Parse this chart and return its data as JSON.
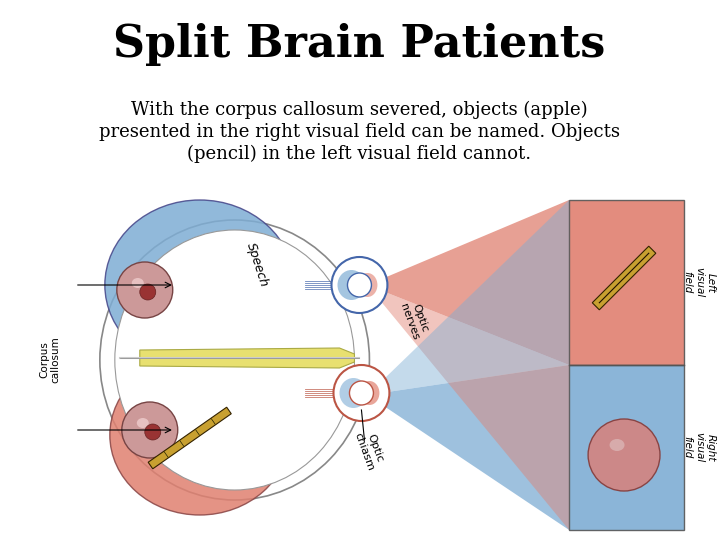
{
  "title": "Split Brain Patients",
  "sub1": "With the corpus callosum severed, objects (apple)",
  "sub2": "presented in the right visual field can be named. Objects",
  "sub3": "(pencil) in the left visual field cannot.",
  "title_fs": 32,
  "sub_fs": 13,
  "bg": "#ffffff",
  "blue": "#7eadd4",
  "red": "#e08070",
  "yellow": "#e8e070",
  "dark_blue": "#4466aa",
  "dark_red": "#bb5544",
  "overlap_purple": "#a088aa"
}
